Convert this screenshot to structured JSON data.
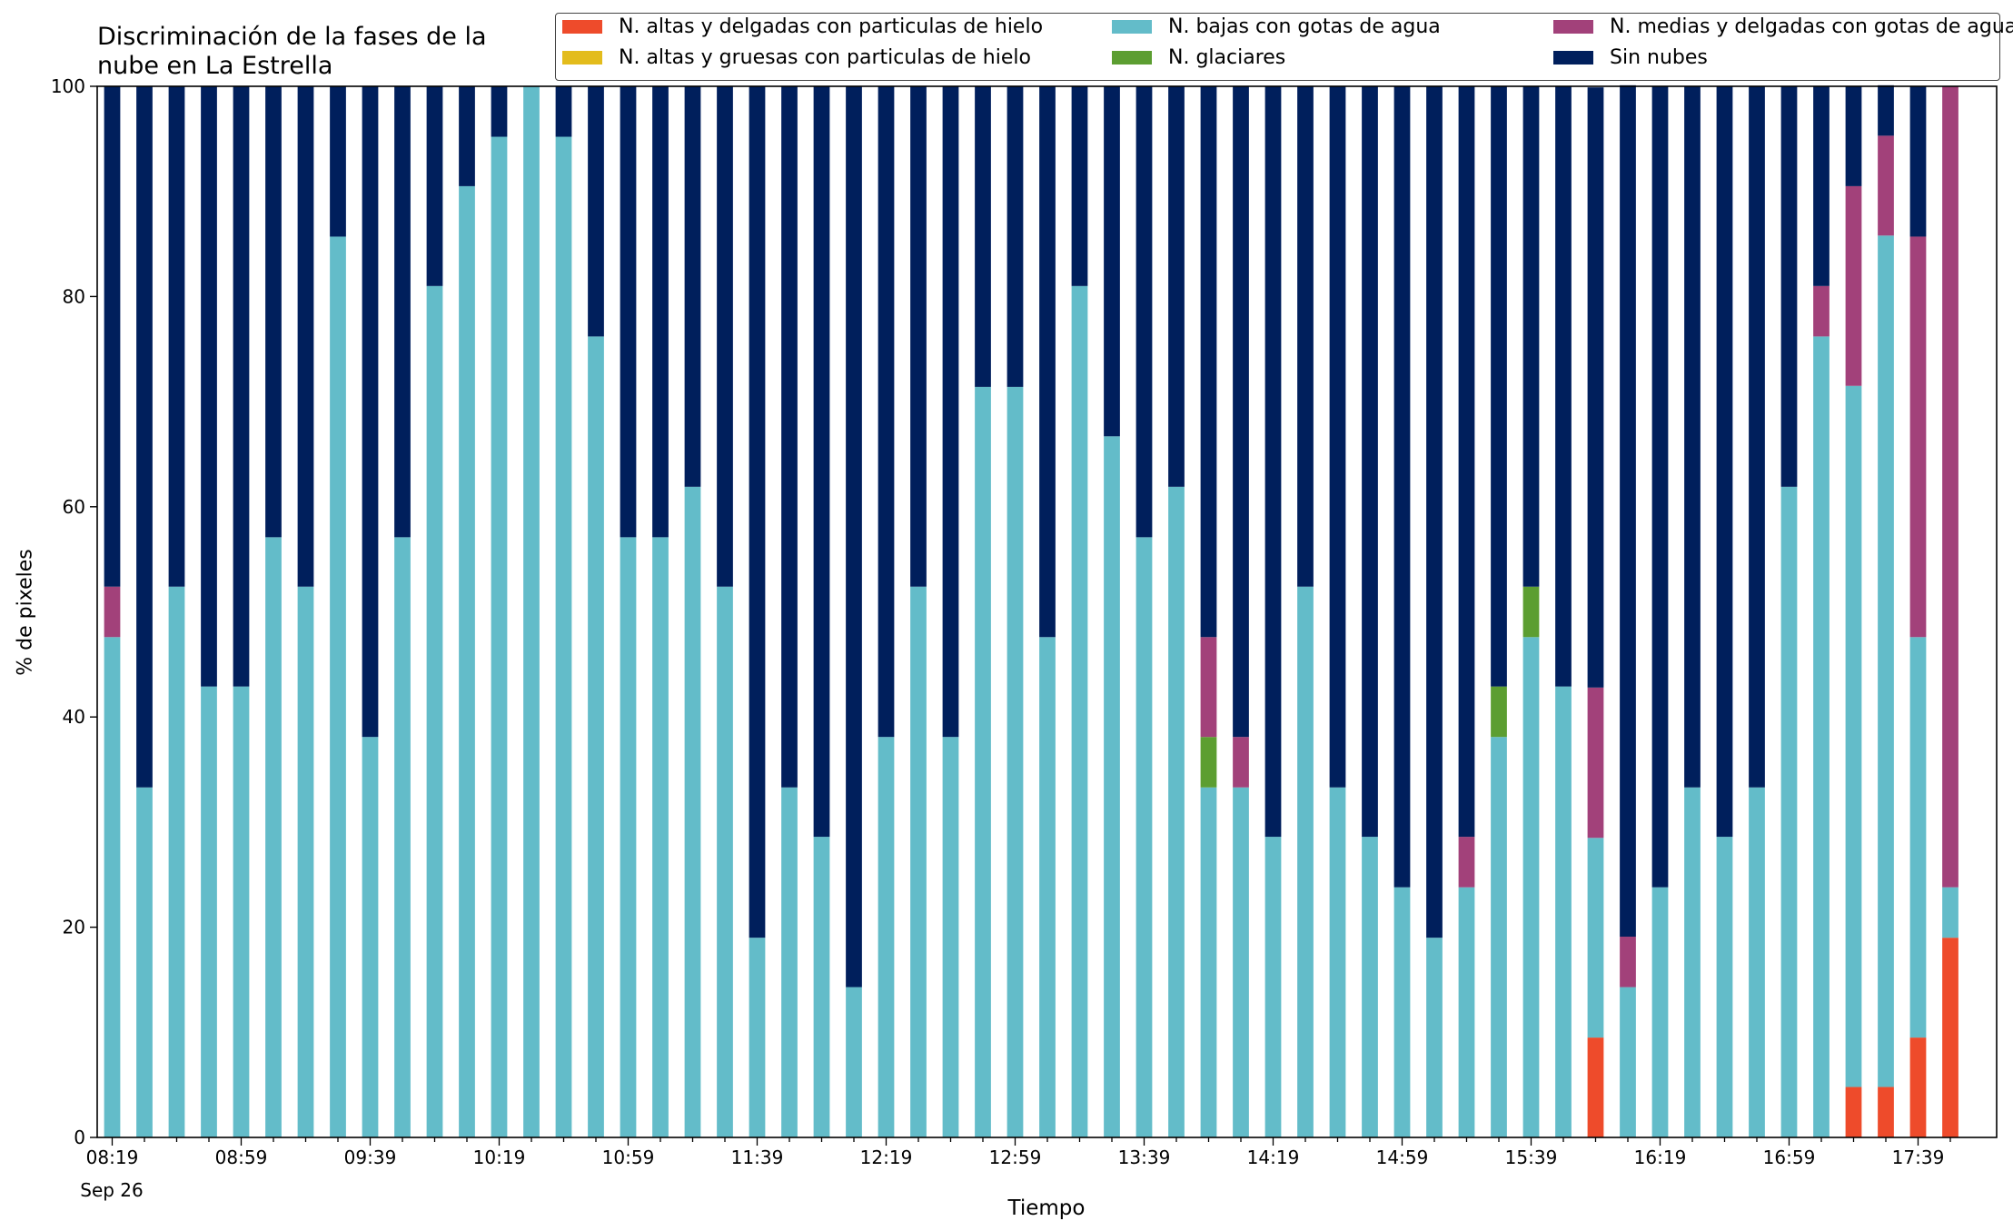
{
  "chart_data": {
    "type": "bar",
    "stacked": true,
    "title": "Discriminación de la fases de la\nnube en La Estrella",
    "title_lines": [
      "Discriminación de la fases de la",
      "nube en La Estrella"
    ],
    "xlabel": "Tiempo",
    "ylabel": "% de pixeles",
    "date_label": "Sep 26",
    "ylim": [
      0,
      100
    ],
    "yticks": [
      0,
      20,
      40,
      60,
      80,
      100
    ],
    "x_tick_labels": [
      "08:19",
      "08:59",
      "09:39",
      "10:19",
      "10:59",
      "11:39",
      "12:19",
      "12:59",
      "13:39",
      "14:19",
      "14:59",
      "15:39",
      "16:19",
      "16:59",
      "17:39"
    ],
    "legend_position": "top-right",
    "grid": false,
    "categories": [
      "08:19",
      "08:29",
      "08:39",
      "08:49",
      "08:59",
      "09:09",
      "09:19",
      "09:29",
      "09:39",
      "09:49",
      "09:59",
      "10:09",
      "10:19",
      "10:29",
      "10:39",
      "10:49",
      "10:59",
      "11:09",
      "11:19",
      "11:29",
      "11:39",
      "11:49",
      "11:59",
      "12:09",
      "12:19",
      "12:29",
      "12:39",
      "12:49",
      "12:59",
      "13:09",
      "13:19",
      "13:29",
      "13:39",
      "13:49",
      "13:59",
      "14:09",
      "14:19",
      "14:29",
      "14:39",
      "14:49",
      "14:59",
      "15:09",
      "15:19",
      "15:29",
      "15:39",
      "15:49",
      "15:59",
      "16:09",
      "16:19",
      "16:29",
      "16:39",
      "16:49",
      "16:59",
      "17:09",
      "17:19",
      "17:29",
      "17:39",
      "17:49"
    ],
    "series": [
      {
        "name": "N. altas y delgadas con particulas de hielo",
        "color": "#ee4b2b",
        "values": [
          0,
          0,
          0,
          0,
          0,
          0,
          0,
          0,
          0,
          0,
          0,
          0,
          0,
          0,
          0,
          0,
          0,
          0,
          0,
          0,
          0,
          0,
          0,
          0,
          0,
          0,
          0,
          0,
          0,
          0,
          0,
          0,
          0,
          0,
          0,
          0,
          0,
          0,
          0,
          0,
          0,
          0,
          0,
          0,
          0,
          0,
          9.5,
          0,
          0,
          0,
          0,
          0,
          0,
          0,
          4.8,
          4.8,
          9.5,
          19.0
        ]
      },
      {
        "name": "N. altas y gruesas con particulas de hielo",
        "color": "#e3bc1c",
        "values": [
          0,
          0,
          0,
          0,
          0,
          0,
          0,
          0,
          0,
          0,
          0,
          0,
          0,
          0,
          0,
          0,
          0,
          0,
          0,
          0,
          0,
          0,
          0,
          0,
          0,
          0,
          0,
          0,
          0,
          0,
          0,
          0,
          0,
          0,
          0,
          0,
          0,
          0,
          0,
          0,
          0,
          0,
          0,
          0,
          0,
          0,
          0,
          0,
          0,
          0,
          0,
          0,
          0,
          0,
          0,
          0,
          0,
          0
        ]
      },
      {
        "name": "N. bajas con gotas de agua",
        "color": "#63bcc9",
        "values": [
          47.6,
          33.3,
          52.4,
          42.9,
          42.9,
          57.1,
          52.4,
          85.7,
          38.1,
          57.1,
          81.0,
          90.5,
          95.2,
          100,
          95.2,
          76.2,
          57.1,
          57.1,
          61.9,
          52.4,
          19.0,
          33.3,
          28.6,
          14.3,
          38.1,
          52.4,
          38.1,
          71.4,
          71.4,
          47.6,
          81.0,
          66.7,
          57.1,
          61.9,
          33.3,
          33.3,
          28.6,
          52.4,
          33.3,
          28.6,
          23.8,
          19.0,
          23.8,
          38.1,
          47.6,
          42.9,
          19.0,
          14.3,
          23.8,
          33.3,
          28.6,
          33.3,
          61.9,
          76.2,
          66.7,
          81.0,
          38.1,
          4.8
        ]
      },
      {
        "name": "N. glaciares",
        "color": "#5c9e31",
        "values": [
          0,
          0,
          0,
          0,
          0,
          0,
          0,
          0,
          0,
          0,
          0,
          0,
          0,
          0,
          0,
          0,
          0,
          0,
          0,
          0,
          0,
          0,
          0,
          0,
          0,
          0,
          0,
          0,
          0,
          0,
          0,
          0,
          0,
          0,
          4.8,
          0,
          0,
          0,
          0,
          0,
          0,
          0,
          0,
          4.8,
          4.8,
          0,
          0,
          0,
          0,
          0,
          0,
          0,
          0,
          0,
          0,
          0,
          0,
          0
        ]
      },
      {
        "name": "N. medias y delgadas con gotas de agua",
        "color": "#a2417a",
        "values": [
          4.8,
          0,
          0,
          0,
          0,
          0,
          0,
          0,
          0,
          0,
          0,
          0,
          0,
          0,
          0,
          0,
          0,
          0,
          0,
          0,
          0,
          0,
          0,
          0,
          0,
          0,
          0,
          0,
          0,
          0,
          0,
          0,
          0,
          0,
          9.5,
          4.8,
          0,
          0,
          0,
          0,
          0,
          0,
          4.8,
          0,
          0,
          0,
          14.3,
          4.8,
          0,
          0,
          0,
          0,
          0,
          4.8,
          19.0,
          9.5,
          38.1,
          76.2
        ]
      },
      {
        "name": "Sin nubes",
        "color": "#001f5c",
        "values": [
          47.6,
          66.7,
          47.6,
          57.1,
          57.1,
          42.9,
          47.6,
          14.3,
          61.9,
          42.9,
          19.0,
          9.5,
          4.8,
          0,
          4.8,
          23.8,
          42.9,
          42.9,
          38.1,
          47.6,
          81.0,
          66.7,
          71.4,
          85.7,
          61.9,
          47.6,
          61.9,
          28.6,
          28.6,
          52.4,
          19.0,
          33.3,
          42.9,
          38.1,
          52.4,
          61.9,
          71.4,
          47.6,
          66.7,
          71.4,
          76.2,
          81.0,
          71.4,
          57.1,
          47.6,
          57.1,
          57.1,
          81.0,
          76.2,
          66.7,
          71.4,
          66.7,
          38.1,
          19.0,
          9.5,
          4.8,
          14.3,
          0
        ]
      }
    ]
  }
}
